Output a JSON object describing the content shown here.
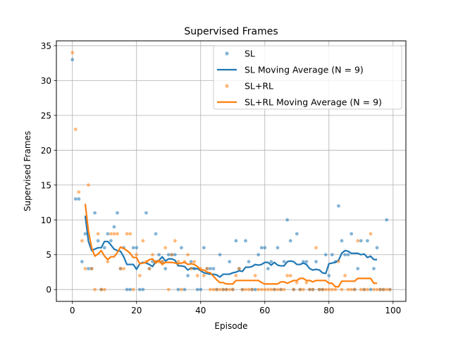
{
  "chart_data": {
    "type": "scatter",
    "title": "Supervised Frames",
    "xlabel": "Episode",
    "ylabel": "Supervised Frames",
    "xlim": [
      -5,
      104
    ],
    "ylim": [
      -1.7,
      35.7
    ],
    "xticks": [
      0,
      20,
      40,
      60,
      80,
      100
    ],
    "yticks": [
      0,
      5,
      10,
      15,
      20,
      25,
      30,
      35
    ],
    "grid": true,
    "legend_position": "top-right",
    "series": [
      {
        "name": "SL",
        "kind": "scatter",
        "color": "#1f77b4",
        "x": [
          0,
          1,
          2,
          3,
          4,
          5,
          6,
          7,
          8,
          9,
          10,
          11,
          12,
          13,
          14,
          15,
          16,
          17,
          18,
          19,
          20,
          21,
          22,
          23,
          24,
          25,
          26,
          27,
          28,
          29,
          30,
          31,
          32,
          33,
          34,
          35,
          36,
          37,
          38,
          39,
          40,
          41,
          42,
          43,
          44,
          45,
          46,
          47,
          48,
          49,
          50,
          51,
          52,
          53,
          54,
          55,
          56,
          57,
          58,
          59,
          60,
          61,
          62,
          63,
          64,
          65,
          66,
          67,
          68,
          69,
          70,
          71,
          72,
          73,
          74,
          75,
          76,
          77,
          78,
          79,
          80,
          81,
          82,
          83,
          84,
          85,
          86,
          87,
          88,
          89,
          90,
          91,
          92,
          93,
          94,
          95,
          96,
          97,
          98,
          99
        ],
        "y": [
          33,
          13,
          13,
          4,
          8,
          3,
          3,
          11,
          7,
          0,
          6,
          8,
          7,
          9,
          11,
          3,
          6,
          0,
          0,
          6,
          6,
          0,
          0,
          11,
          3,
          4,
          8,
          5,
          4,
          3,
          5,
          5,
          5,
          0,
          6,
          0,
          2,
          4,
          3,
          0,
          0,
          6,
          3,
          3,
          3,
          0,
          5,
          0,
          0,
          4,
          0,
          7,
          3,
          0,
          7,
          4,
          0,
          0,
          5,
          6,
          6,
          3,
          4,
          0,
          6,
          0,
          4,
          10,
          7,
          0,
          8,
          0,
          4,
          4,
          0,
          0,
          4,
          0,
          0,
          5,
          2,
          5,
          4,
          12,
          7,
          5,
          5,
          8,
          0,
          3,
          7,
          0,
          7,
          0,
          3,
          6,
          0,
          0,
          10,
          0
        ]
      },
      {
        "name": "SL Moving Average (N = 9)",
        "kind": "line",
        "color": "#1f77b4",
        "x": [
          4,
          5,
          6,
          7,
          8,
          9,
          10,
          11,
          12,
          13,
          14,
          15,
          16,
          17,
          18,
          19,
          20,
          21,
          22,
          23,
          24,
          25,
          26,
          27,
          28,
          29,
          30,
          31,
          32,
          33,
          34,
          35,
          36,
          37,
          38,
          39,
          40,
          41,
          42,
          43,
          44,
          45,
          46,
          47,
          48,
          49,
          50,
          51,
          52,
          53,
          54,
          55,
          56,
          57,
          58,
          59,
          60,
          61,
          62,
          63,
          64,
          65,
          66,
          67,
          68,
          69,
          70,
          71,
          72,
          73,
          74,
          75,
          76,
          77,
          78,
          79,
          80,
          81,
          82,
          83,
          84,
          85,
          86,
          87,
          88,
          89,
          90,
          91,
          92,
          93,
          94,
          95
        ],
        "y": [
          10.6,
          6.9,
          5.6,
          5.8,
          6.0,
          6.0,
          6.9,
          6.9,
          6.4,
          5.8,
          5.6,
          5.5,
          4.7,
          3.6,
          3.6,
          3.6,
          2.9,
          3.7,
          3.9,
          3.8,
          3.6,
          3.3,
          4.0,
          4.2,
          4.7,
          4.1,
          4.4,
          4.4,
          4.2,
          3.4,
          3.4,
          3.3,
          2.8,
          3.1,
          3.0,
          3.0,
          2.7,
          2.4,
          2.3,
          2.2,
          2.2,
          2.1,
          1.8,
          2.2,
          2.2,
          2.2,
          2.4,
          2.5,
          2.7,
          2.6,
          3.2,
          3.2,
          3.3,
          3.6,
          3.5,
          3.6,
          3.9,
          3.9,
          3.5,
          3.9,
          3.5,
          3.4,
          3.4,
          4.0,
          4.1,
          4.0,
          3.6,
          3.6,
          3.8,
          3.6,
          3.0,
          2.8,
          2.9,
          2.8,
          2.4,
          2.3,
          3.7,
          3.8,
          3.9,
          4.2,
          5.2,
          5.6,
          5.5,
          5.2,
          5.2,
          5.2,
          5.0,
          5.1,
          4.6,
          4.8,
          4.3,
          4.3
        ]
      },
      {
        "name": "SL+RL",
        "kind": "scatter",
        "color": "#ff7f0e",
        "x": [
          0,
          1,
          2,
          3,
          4,
          5,
          6,
          7,
          8,
          9,
          10,
          11,
          12,
          13,
          14,
          15,
          16,
          17,
          18,
          19,
          20,
          21,
          22,
          23,
          24,
          25,
          26,
          27,
          28,
          29,
          30,
          31,
          32,
          33,
          34,
          35,
          36,
          37,
          38,
          39,
          40,
          41,
          42,
          43,
          44,
          45,
          46,
          47,
          48,
          49,
          50,
          51,
          52,
          53,
          54,
          55,
          56,
          57,
          58,
          59,
          60,
          61,
          62,
          63,
          64,
          65,
          66,
          67,
          68,
          69,
          70,
          71,
          72,
          73,
          74,
          75,
          76,
          77,
          78,
          79,
          80,
          81,
          82,
          83,
          84,
          85,
          86,
          87,
          88,
          89,
          90,
          91,
          92,
          93,
          94,
          95,
          96,
          97,
          98,
          99
        ],
        "y": [
          34,
          23,
          14,
          7,
          3,
          15,
          3,
          0,
          8,
          0,
          0,
          4,
          8,
          8,
          8,
          3,
          3,
          8,
          8,
          0,
          5,
          2,
          7,
          4,
          3,
          5,
          4,
          4,
          4,
          6,
          0,
          5,
          7,
          4,
          0,
          4,
          5,
          3,
          4,
          2,
          3,
          2,
          3,
          0,
          0,
          0,
          0,
          0,
          0,
          0,
          0,
          2,
          3,
          0,
          0,
          0,
          0,
          2,
          0,
          0,
          0,
          0,
          0,
          0,
          0,
          0,
          0,
          2,
          2,
          0,
          1,
          0,
          0,
          1,
          0,
          0,
          6,
          0,
          0,
          0,
          0,
          0,
          0,
          4,
          0,
          2,
          0,
          0,
          0,
          7,
          0,
          0,
          0,
          8,
          0,
          0,
          0,
          0,
          0,
          0
        ]
      },
      {
        "name": "SL+RL Moving Average (N = 9)",
        "kind": "line",
        "color": "#ff7f0e",
        "x": [
          4,
          5,
          6,
          7,
          8,
          9,
          10,
          11,
          12,
          13,
          14,
          15,
          16,
          17,
          18,
          19,
          20,
          21,
          22,
          23,
          24,
          25,
          26,
          27,
          28,
          29,
          30,
          31,
          32,
          33,
          34,
          35,
          36,
          37,
          38,
          39,
          40,
          41,
          42,
          43,
          44,
          45,
          46,
          47,
          48,
          49,
          50,
          51,
          52,
          53,
          54,
          55,
          56,
          57,
          58,
          59,
          60,
          61,
          62,
          63,
          64,
          65,
          66,
          67,
          68,
          69,
          70,
          71,
          72,
          73,
          74,
          75,
          76,
          77,
          78,
          79,
          80,
          81,
          82,
          83,
          84,
          85,
          86,
          87,
          88,
          89,
          90,
          91,
          92,
          93,
          94,
          95
        ],
        "y": [
          12.3,
          8.4,
          6.0,
          4.8,
          5.1,
          5.6,
          4.8,
          4.3,
          4.7,
          4.7,
          5.3,
          6.1,
          5.9,
          5.6,
          5.2,
          4.6,
          4.6,
          3.7,
          3.8,
          3.9,
          4.3,
          4.4,
          3.8,
          4.2,
          3.6,
          3.9,
          3.9,
          3.9,
          3.8,
          3.7,
          3.8,
          3.9,
          3.6,
          3.7,
          3.6,
          3.3,
          2.8,
          2.8,
          2.5,
          2.4,
          1.9,
          1.4,
          1.0,
          1.0,
          0.8,
          0.8,
          0.8,
          1.3,
          1.3,
          1.3,
          1.3,
          1.3,
          1.3,
          1.3,
          1.3,
          1.0,
          0.8,
          0.8,
          0.8,
          0.8,
          0.8,
          1.1,
          1.1,
          0.9,
          1.1,
          1.3,
          1.3,
          1.6,
          1.6,
          1.3,
          1.3,
          1.1,
          1.3,
          1.3,
          1.3,
          1.3,
          0.9,
          0.9,
          0.4,
          0.4,
          1.2,
          1.2,
          1.2,
          1.2,
          1.2,
          1.6,
          1.6,
          1.6,
          1.6,
          1.6,
          0.9,
          0.9
        ]
      }
    ]
  }
}
